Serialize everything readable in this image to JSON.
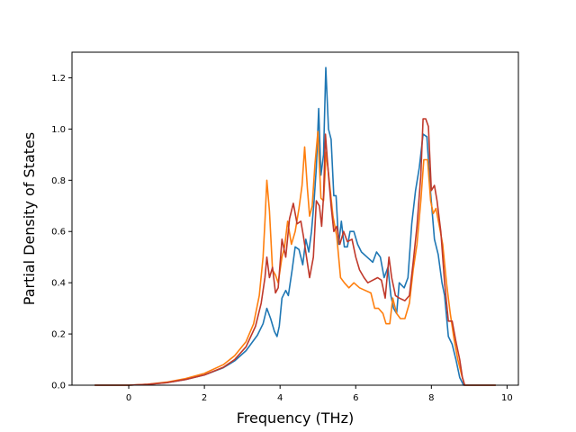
{
  "chart_data": {
    "type": "line",
    "title": "",
    "xlabel": "Frequency (THz)",
    "ylabel": "Partial Density of States",
    "xlim": [
      -1.5,
      10.3
    ],
    "ylim": [
      0,
      1.3
    ],
    "x_ticks": [
      0,
      2,
      4,
      6,
      8,
      10
    ],
    "x_tick_labels": [
      "0",
      "2",
      "4",
      "6",
      "8",
      "10"
    ],
    "y_ticks": [
      0.0,
      0.2,
      0.4,
      0.6,
      0.8,
      1.0,
      1.2
    ],
    "y_tick_labels": [
      "0.0",
      "0.2",
      "0.4",
      "0.6",
      "0.8",
      "1.0",
      "1.2"
    ],
    "grid": false,
    "legend": "none",
    "series": [
      {
        "color": "#1f77b4",
        "points": [
          [
            -0.9,
            0
          ],
          [
            0,
            0
          ],
          [
            0.5,
            0.003
          ],
          [
            1,
            0.01
          ],
          [
            1.5,
            0.022
          ],
          [
            2,
            0.04
          ],
          [
            2.5,
            0.068
          ],
          [
            2.8,
            0.095
          ],
          [
            3.1,
            0.135
          ],
          [
            3.4,
            0.195
          ],
          [
            3.55,
            0.24
          ],
          [
            3.65,
            0.3
          ],
          [
            3.75,
            0.26
          ],
          [
            3.85,
            0.21
          ],
          [
            3.92,
            0.19
          ],
          [
            3.98,
            0.23
          ],
          [
            4.05,
            0.34
          ],
          [
            4.15,
            0.37
          ],
          [
            4.22,
            0.35
          ],
          [
            4.32,
            0.45
          ],
          [
            4.4,
            0.54
          ],
          [
            4.5,
            0.53
          ],
          [
            4.6,
            0.47
          ],
          [
            4.68,
            0.57
          ],
          [
            4.76,
            0.52
          ],
          [
            4.83,
            0.6
          ],
          [
            4.9,
            0.72
          ],
          [
            4.96,
            0.85
          ],
          [
            5.02,
            1.08
          ],
          [
            5.08,
            0.82
          ],
          [
            5.15,
            0.9
          ],
          [
            5.21,
            1.24
          ],
          [
            5.28,
            1.0
          ],
          [
            5.35,
            0.96
          ],
          [
            5.42,
            0.74
          ],
          [
            5.48,
            0.74
          ],
          [
            5.55,
            0.55
          ],
          [
            5.62,
            0.64
          ],
          [
            5.7,
            0.54
          ],
          [
            5.78,
            0.54
          ],
          [
            5.85,
            0.6
          ],
          [
            5.95,
            0.6
          ],
          [
            6.05,
            0.55
          ],
          [
            6.15,
            0.52
          ],
          [
            6.3,
            0.5
          ],
          [
            6.45,
            0.48
          ],
          [
            6.55,
            0.52
          ],
          [
            6.65,
            0.5
          ],
          [
            6.75,
            0.42
          ],
          [
            6.85,
            0.46
          ],
          [
            6.93,
            0.35
          ],
          [
            7.0,
            0.3
          ],
          [
            7.08,
            0.28
          ],
          [
            7.15,
            0.4
          ],
          [
            7.28,
            0.38
          ],
          [
            7.38,
            0.42
          ],
          [
            7.48,
            0.63
          ],
          [
            7.58,
            0.76
          ],
          [
            7.68,
            0.85
          ],
          [
            7.78,
            0.98
          ],
          [
            7.88,
            0.97
          ],
          [
            7.98,
            0.75
          ],
          [
            8.08,
            0.57
          ],
          [
            8.18,
            0.51
          ],
          [
            8.28,
            0.4
          ],
          [
            8.35,
            0.35
          ],
          [
            8.45,
            0.19
          ],
          [
            8.55,
            0.16
          ],
          [
            8.65,
            0.1
          ],
          [
            8.75,
            0.03
          ],
          [
            8.85,
            0
          ],
          [
            9.7,
            0
          ]
        ]
      },
      {
        "color": "#ff7f0e",
        "points": [
          [
            -0.9,
            0
          ],
          [
            0,
            0
          ],
          [
            0.5,
            0.004
          ],
          [
            1,
            0.012
          ],
          [
            1.5,
            0.026
          ],
          [
            2,
            0.046
          ],
          [
            2.5,
            0.08
          ],
          [
            2.8,
            0.115
          ],
          [
            3.1,
            0.17
          ],
          [
            3.3,
            0.24
          ],
          [
            3.45,
            0.35
          ],
          [
            3.55,
            0.5
          ],
          [
            3.6,
            0.64
          ],
          [
            3.65,
            0.8
          ],
          [
            3.72,
            0.68
          ],
          [
            3.8,
            0.45
          ],
          [
            3.88,
            0.43
          ],
          [
            3.95,
            0.4
          ],
          [
            4.05,
            0.5
          ],
          [
            4.12,
            0.54
          ],
          [
            4.2,
            0.64
          ],
          [
            4.3,
            0.55
          ],
          [
            4.4,
            0.6
          ],
          [
            4.5,
            0.69
          ],
          [
            4.58,
            0.78
          ],
          [
            4.65,
            0.93
          ],
          [
            4.72,
            0.77
          ],
          [
            4.78,
            0.66
          ],
          [
            4.85,
            0.7
          ],
          [
            4.92,
            0.86
          ],
          [
            5.0,
            0.99
          ],
          [
            5.08,
            0.73
          ],
          [
            5.15,
            0.72
          ],
          [
            5.22,
            0.91
          ],
          [
            5.3,
            0.8
          ],
          [
            5.4,
            0.66
          ],
          [
            5.5,
            0.58
          ],
          [
            5.6,
            0.42
          ],
          [
            5.7,
            0.4
          ],
          [
            5.82,
            0.38
          ],
          [
            5.95,
            0.4
          ],
          [
            6.1,
            0.38
          ],
          [
            6.25,
            0.37
          ],
          [
            6.4,
            0.36
          ],
          [
            6.5,
            0.3
          ],
          [
            6.6,
            0.3
          ],
          [
            6.72,
            0.28
          ],
          [
            6.8,
            0.24
          ],
          [
            6.9,
            0.24
          ],
          [
            6.98,
            0.34
          ],
          [
            7.08,
            0.28
          ],
          [
            7.18,
            0.26
          ],
          [
            7.3,
            0.26
          ],
          [
            7.42,
            0.32
          ],
          [
            7.52,
            0.45
          ],
          [
            7.62,
            0.55
          ],
          [
            7.72,
            0.72
          ],
          [
            7.8,
            0.88
          ],
          [
            7.9,
            0.88
          ],
          [
            7.98,
            0.72
          ],
          [
            8.05,
            0.67
          ],
          [
            8.12,
            0.69
          ],
          [
            8.2,
            0.63
          ],
          [
            8.3,
            0.55
          ],
          [
            8.4,
            0.4
          ],
          [
            8.5,
            0.28
          ],
          [
            8.6,
            0.18
          ],
          [
            8.7,
            0.1
          ],
          [
            8.8,
            0.04
          ],
          [
            8.88,
            0
          ],
          [
            9.7,
            0
          ]
        ]
      },
      {
        "color": "#c0392b",
        "points": [
          [
            -0.9,
            0
          ],
          [
            0,
            0
          ],
          [
            0.5,
            0.003
          ],
          [
            1,
            0.01
          ],
          [
            1.5,
            0.022
          ],
          [
            2,
            0.04
          ],
          [
            2.5,
            0.07
          ],
          [
            2.8,
            0.1
          ],
          [
            3.1,
            0.15
          ],
          [
            3.35,
            0.23
          ],
          [
            3.5,
            0.32
          ],
          [
            3.6,
            0.42
          ],
          [
            3.65,
            0.5
          ],
          [
            3.72,
            0.42
          ],
          [
            3.8,
            0.46
          ],
          [
            3.88,
            0.36
          ],
          [
            3.95,
            0.38
          ],
          [
            4.05,
            0.57
          ],
          [
            4.15,
            0.5
          ],
          [
            4.25,
            0.65
          ],
          [
            4.35,
            0.71
          ],
          [
            4.45,
            0.63
          ],
          [
            4.55,
            0.64
          ],
          [
            4.62,
            0.58
          ],
          [
            4.7,
            0.5
          ],
          [
            4.78,
            0.42
          ],
          [
            4.88,
            0.5
          ],
          [
            4.96,
            0.72
          ],
          [
            5.04,
            0.7
          ],
          [
            5.1,
            0.62
          ],
          [
            5.15,
            0.74
          ],
          [
            5.2,
            0.98
          ],
          [
            5.28,
            0.82
          ],
          [
            5.35,
            0.7
          ],
          [
            5.42,
            0.6
          ],
          [
            5.5,
            0.62
          ],
          [
            5.58,
            0.55
          ],
          [
            5.68,
            0.6
          ],
          [
            5.78,
            0.56
          ],
          [
            5.9,
            0.57
          ],
          [
            6.0,
            0.5
          ],
          [
            6.1,
            0.45
          ],
          [
            6.22,
            0.42
          ],
          [
            6.32,
            0.4
          ],
          [
            6.45,
            0.41
          ],
          [
            6.58,
            0.42
          ],
          [
            6.68,
            0.41
          ],
          [
            6.78,
            0.34
          ],
          [
            6.88,
            0.5
          ],
          [
            6.95,
            0.42
          ],
          [
            7.05,
            0.35
          ],
          [
            7.15,
            0.34
          ],
          [
            7.3,
            0.33
          ],
          [
            7.42,
            0.35
          ],
          [
            7.52,
            0.48
          ],
          [
            7.62,
            0.62
          ],
          [
            7.72,
            0.82
          ],
          [
            7.78,
            1.04
          ],
          [
            7.85,
            1.04
          ],
          [
            7.92,
            1.01
          ],
          [
            8.0,
            0.76
          ],
          [
            8.08,
            0.78
          ],
          [
            8.15,
            0.72
          ],
          [
            8.25,
            0.6
          ],
          [
            8.35,
            0.4
          ],
          [
            8.45,
            0.25
          ],
          [
            8.55,
            0.25
          ],
          [
            8.65,
            0.17
          ],
          [
            8.75,
            0.1
          ],
          [
            8.82,
            0.03
          ],
          [
            8.88,
            0
          ],
          [
            9.7,
            0
          ]
        ]
      }
    ]
  }
}
